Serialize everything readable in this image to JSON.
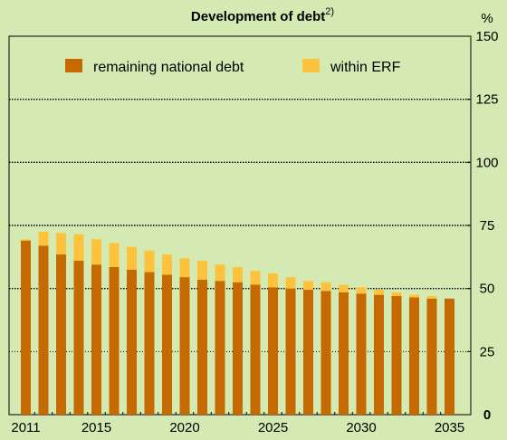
{
  "chart_data": {
    "type": "bar",
    "stacked": true,
    "title": "Development of debt",
    "title_superscript": "2)",
    "ylabel": "%",
    "xlabel": "",
    "ylim": [
      0,
      150
    ],
    "yticks": [
      0,
      25,
      50,
      75,
      100,
      125,
      150
    ],
    "y_axis_side": "right",
    "grid": "dotted horizontal at 50, 75, 100, 125",
    "legend_position": "top",
    "x": [
      2011,
      2012,
      2013,
      2014,
      2015,
      2016,
      2017,
      2018,
      2019,
      2020,
      2021,
      2022,
      2023,
      2024,
      2025,
      2026,
      2027,
      2028,
      2029,
      2030,
      2031,
      2032,
      2033,
      2034,
      2035
    ],
    "x_tick_labels": [
      "2011",
      "2015",
      "2020",
      "2025",
      "2030",
      "2035"
    ],
    "series": [
      {
        "name": "remaining national debt",
        "color": "#c56a00",
        "values": [
          69,
          67,
          63.5,
          61,
          59.5,
          58.5,
          57.5,
          56.5,
          55.5,
          54.5,
          53.5,
          53,
          52.5,
          51.5,
          50.5,
          50,
          49.5,
          49,
          48.5,
          48,
          47.5,
          47,
          46.5,
          46,
          46
        ]
      },
      {
        "name": "within ERF",
        "color": "#fdc33d",
        "values": [
          0.5,
          5.5,
          8.5,
          10.5,
          10,
          9.5,
          9,
          8.5,
          8,
          7.5,
          7.5,
          6.5,
          6,
          5.5,
          5.5,
          4.5,
          3.5,
          3.5,
          3,
          2.5,
          2,
          1.5,
          1,
          1,
          0
        ]
      }
    ]
  }
}
